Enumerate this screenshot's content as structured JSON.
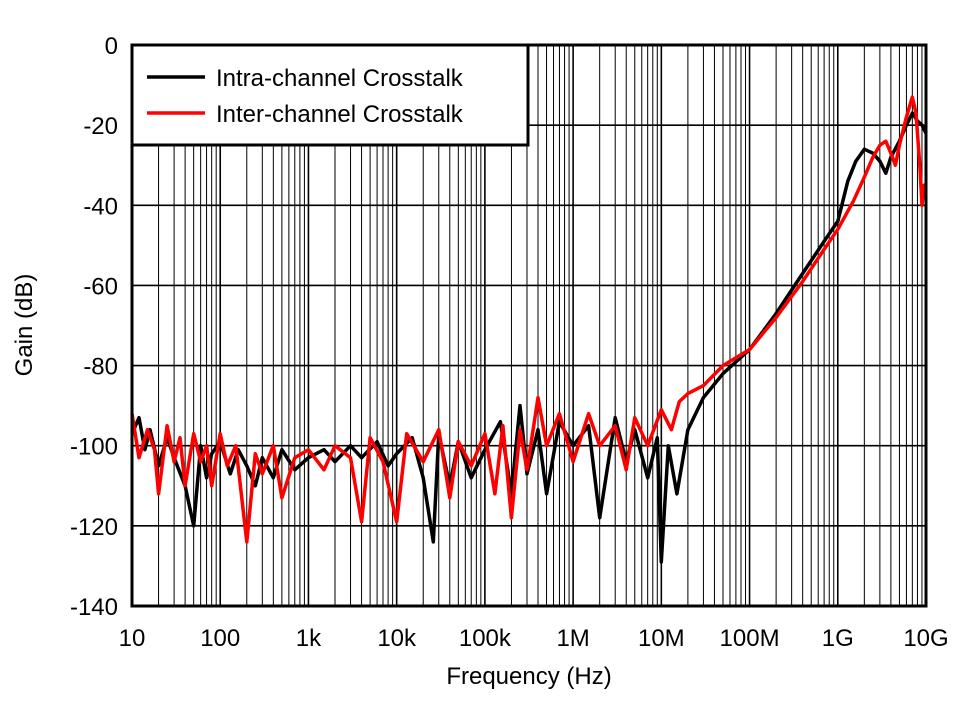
{
  "chart_data": {
    "type": "line",
    "xlabel": "Frequency (Hz)",
    "ylabel": "Gain (dB)",
    "xscale": "log",
    "xlim": [
      10,
      10000000000
    ],
    "ylim": [
      -140,
      0
    ],
    "grid": true,
    "legend_position": "top-left",
    "xticks": [
      {
        "value": 10,
        "label": "10"
      },
      {
        "value": 100,
        "label": "100"
      },
      {
        "value": 1000,
        "label": "1k"
      },
      {
        "value": 10000,
        "label": "10k"
      },
      {
        "value": 100000,
        "label": "100k"
      },
      {
        "value": 1000000,
        "label": "1M"
      },
      {
        "value": 10000000,
        "label": "10M"
      },
      {
        "value": 100000000,
        "label": "100M"
      },
      {
        "value": 1000000000,
        "label": "1G"
      },
      {
        "value": 10000000000,
        "label": "10G"
      }
    ],
    "yticks": [
      {
        "value": 0,
        "label": "0"
      },
      {
        "value": -20,
        "label": "-20"
      },
      {
        "value": -40,
        "label": "-40"
      },
      {
        "value": -60,
        "label": "-60"
      },
      {
        "value": -80,
        "label": "-80"
      },
      {
        "value": -100,
        "label": "-100"
      },
      {
        "value": -120,
        "label": "-120"
      },
      {
        "value": -140,
        "label": "-140"
      }
    ],
    "series": [
      {
        "name": "Intra-channel Crosstalk",
        "color": "#000000",
        "points": [
          [
            10,
            -97
          ],
          [
            12,
            -93
          ],
          [
            14,
            -101
          ],
          [
            16,
            -96
          ],
          [
            20,
            -105
          ],
          [
            25,
            -98
          ],
          [
            30,
            -103
          ],
          [
            40,
            -110
          ],
          [
            50,
            -120
          ],
          [
            60,
            -100
          ],
          [
            70,
            -108
          ],
          [
            80,
            -102
          ],
          [
            100,
            -99
          ],
          [
            130,
            -107
          ],
          [
            160,
            -101
          ],
          [
            200,
            -105
          ],
          [
            250,
            -110
          ],
          [
            300,
            -103
          ],
          [
            400,
            -108
          ],
          [
            500,
            -101
          ],
          [
            700,
            -106
          ],
          [
            1000,
            -103
          ],
          [
            1500,
            -101
          ],
          [
            2000,
            -104
          ],
          [
            3000,
            -100
          ],
          [
            4000,
            -103
          ],
          [
            6000,
            -99
          ],
          [
            8000,
            -105
          ],
          [
            10000,
            -102
          ],
          [
            15000,
            -98
          ],
          [
            20000,
            -108
          ],
          [
            26000,
            -124
          ],
          [
            30000,
            -97
          ],
          [
            40000,
            -110
          ],
          [
            50000,
            -99
          ],
          [
            70000,
            -108
          ],
          [
            100000,
            -101
          ],
          [
            150000,
            -94
          ],
          [
            200000,
            -112
          ],
          [
            250000,
            -90
          ],
          [
            300000,
            -107
          ],
          [
            400000,
            -96
          ],
          [
            500000,
            -112
          ],
          [
            700000,
            -94
          ],
          [
            1000000,
            -100
          ],
          [
            1500000,
            -95
          ],
          [
            2000000,
            -118
          ],
          [
            3000000,
            -93
          ],
          [
            4000000,
            -104
          ],
          [
            5000000,
            -96
          ],
          [
            7000000,
            -108
          ],
          [
            9000000,
            -98
          ],
          [
            10000000,
            -129
          ],
          [
            12000000,
            -100
          ],
          [
            15000000,
            -112
          ],
          [
            20000000,
            -96
          ],
          [
            30000000,
            -88
          ],
          [
            50000000,
            -82
          ],
          [
            100000000,
            -76
          ],
          [
            200000000,
            -67
          ],
          [
            400000000,
            -57
          ],
          [
            700000000,
            -49
          ],
          [
            1000000000,
            -44
          ],
          [
            1300000000,
            -34
          ],
          [
            1600000000,
            -29
          ],
          [
            2000000000,
            -26
          ],
          [
            2500000000,
            -27
          ],
          [
            3000000000,
            -29
          ],
          [
            3500000000,
            -32
          ],
          [
            4000000000,
            -28
          ],
          [
            5000000000,
            -24
          ],
          [
            6000000000,
            -20
          ],
          [
            7000000000,
            -17
          ],
          [
            8000000000,
            -19
          ],
          [
            9000000000,
            -20
          ],
          [
            10000000000,
            -22
          ]
        ]
      },
      {
        "name": "Inter-channel Crosstalk",
        "color": "#ff0000",
        "points": [
          [
            10,
            -92
          ],
          [
            12,
            -103
          ],
          [
            15,
            -96
          ],
          [
            18,
            -101
          ],
          [
            20,
            -112
          ],
          [
            25,
            -95
          ],
          [
            30,
            -104
          ],
          [
            35,
            -98
          ],
          [
            40,
            -110
          ],
          [
            50,
            -97
          ],
          [
            60,
            -104
          ],
          [
            70,
            -100
          ],
          [
            80,
            -110
          ],
          [
            100,
            -97
          ],
          [
            120,
            -105
          ],
          [
            150,
            -100
          ],
          [
            200,
            -124
          ],
          [
            250,
            -102
          ],
          [
            300,
            -107
          ],
          [
            400,
            -100
          ],
          [
            500,
            -113
          ],
          [
            700,
            -103
          ],
          [
            1000,
            -101
          ],
          [
            1500,
            -106
          ],
          [
            2000,
            -100
          ],
          [
            3000,
            -103
          ],
          [
            4000,
            -119
          ],
          [
            5000,
            -98
          ],
          [
            7000,
            -104
          ],
          [
            10000,
            -119
          ],
          [
            13000,
            -97
          ],
          [
            20000,
            -104
          ],
          [
            30000,
            -96
          ],
          [
            40000,
            -113
          ],
          [
            50000,
            -99
          ],
          [
            70000,
            -105
          ],
          [
            100000,
            -97
          ],
          [
            130000,
            -112
          ],
          [
            160000,
            -95
          ],
          [
            200000,
            -118
          ],
          [
            250000,
            -96
          ],
          [
            300000,
            -106
          ],
          [
            400000,
            -88
          ],
          [
            500000,
            -100
          ],
          [
            700000,
            -92
          ],
          [
            1000000,
            -104
          ],
          [
            1500000,
            -92
          ],
          [
            2000000,
            -100
          ],
          [
            3000000,
            -95
          ],
          [
            4000000,
            -106
          ],
          [
            5000000,
            -93
          ],
          [
            7000000,
            -100
          ],
          [
            10000000,
            -91
          ],
          [
            13000000,
            -96
          ],
          [
            16000000,
            -89
          ],
          [
            20000000,
            -87
          ],
          [
            30000000,
            -85
          ],
          [
            50000000,
            -80
          ],
          [
            100000000,
            -76
          ],
          [
            200000000,
            -68
          ],
          [
            400000000,
            -59
          ],
          [
            700000000,
            -51
          ],
          [
            1000000000,
            -46
          ],
          [
            1500000000,
            -39
          ],
          [
            2000000000,
            -33
          ],
          [
            2500000000,
            -28
          ],
          [
            3000000000,
            -25
          ],
          [
            3500000000,
            -24
          ],
          [
            4000000000,
            -27
          ],
          [
            4500000000,
            -30
          ],
          [
            5000000000,
            -25
          ],
          [
            6000000000,
            -18
          ],
          [
            7000000000,
            -13
          ],
          [
            7700000000,
            -17
          ],
          [
            8500000000,
            -30
          ],
          [
            9000000000,
            -40
          ],
          [
            9500000000,
            -35
          ],
          [
            10000000000,
            -35
          ]
        ]
      }
    ]
  }
}
